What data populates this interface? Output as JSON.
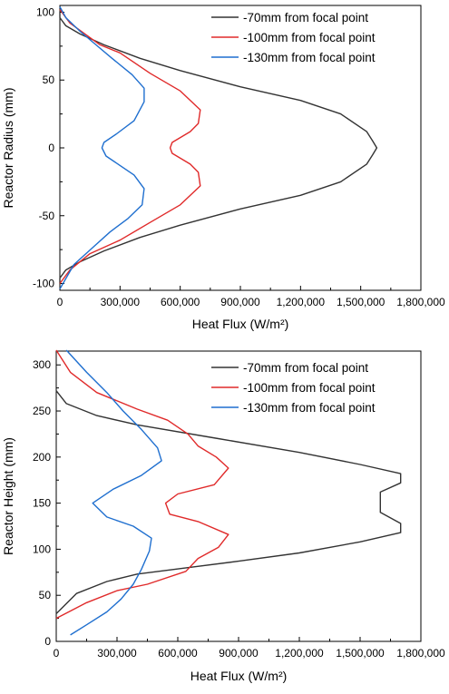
{
  "chart_data": [
    {
      "type": "line",
      "xlabel": "Heat Flux (W/m²)",
      "ylabel": "Reactor Radius (mm)",
      "xlim": [
        0,
        1800000
      ],
      "ylim": [
        -105,
        105
      ],
      "xticks": [
        0,
        300000,
        600000,
        900000,
        1200000,
        1500000,
        1800000
      ],
      "xtick_labels": [
        "0",
        "300,000",
        "600,000",
        "900,000",
        "1,200,000",
        "1,500,000",
        "1,800,000"
      ],
      "yticks": [
        -100,
        -50,
        0,
        50,
        100
      ],
      "ytick_labels": [
        "-100",
        "-50",
        "0",
        "50",
        "100"
      ],
      "grid": false,
      "legend_position": "top-right",
      "series": [
        {
          "name": "-70mm from focal point",
          "color": "#333333",
          "points": [
            [
              0,
              100
            ],
            [
              0,
              96
            ],
            [
              30000,
              90
            ],
            [
              100000,
              84
            ],
            [
              220000,
              76
            ],
            [
              400000,
              66
            ],
            [
              600000,
              57
            ],
            [
              900000,
              45
            ],
            [
              1200000,
              35
            ],
            [
              1400000,
              25
            ],
            [
              1530000,
              12
            ],
            [
              1560000,
              5
            ],
            [
              1580000,
              0
            ],
            [
              1560000,
              -5
            ],
            [
              1530000,
              -12
            ],
            [
              1400000,
              -25
            ],
            [
              1200000,
              -35
            ],
            [
              900000,
              -45
            ],
            [
              600000,
              -57
            ],
            [
              400000,
              -66
            ],
            [
              220000,
              -76
            ],
            [
              100000,
              -84
            ],
            [
              30000,
              -90
            ],
            [
              0,
              -96
            ],
            [
              0,
              -100
            ]
          ]
        },
        {
          "name": "-100mm from focal point",
          "color": "#e02a2a",
          "points": [
            [
              0,
              102
            ],
            [
              50000,
              92
            ],
            [
              200000,
              76
            ],
            [
              300000,
              70
            ],
            [
              450000,
              55
            ],
            [
              600000,
              42
            ],
            [
              700000,
              28
            ],
            [
              690000,
              18
            ],
            [
              650000,
              12
            ],
            [
              560000,
              4
            ],
            [
              550000,
              0
            ],
            [
              560000,
              -4
            ],
            [
              650000,
              -12
            ],
            [
              690000,
              -18
            ],
            [
              700000,
              -28
            ],
            [
              600000,
              -42
            ],
            [
              450000,
              -55
            ],
            [
              300000,
              -68
            ],
            [
              150000,
              -78
            ],
            [
              50000,
              -90
            ],
            [
              0,
              -100
            ]
          ]
        },
        {
          "name": "-130mm from focal point",
          "color": "#1f6fcf",
          "points": [
            [
              0,
              104
            ],
            [
              30000,
              96
            ],
            [
              100000,
              86
            ],
            [
              180000,
              76
            ],
            [
              260000,
              66
            ],
            [
              360000,
              54
            ],
            [
              420000,
              44
            ],
            [
              420000,
              34
            ],
            [
              370000,
              20
            ],
            [
              280000,
              10
            ],
            [
              220000,
              4
            ],
            [
              210000,
              0
            ],
            [
              230000,
              -6
            ],
            [
              300000,
              -13
            ],
            [
              370000,
              -20
            ],
            [
              420000,
              -30
            ],
            [
              410000,
              -42
            ],
            [
              340000,
              -52
            ],
            [
              250000,
              -62
            ],
            [
              160000,
              -74
            ],
            [
              70000,
              -86
            ],
            [
              0,
              -104
            ]
          ]
        }
      ]
    },
    {
      "type": "line",
      "xlabel": "Heat Flux (W/m²)",
      "ylabel": "Reactor Height (mm)",
      "xlim": [
        0,
        1800000
      ],
      "ylim": [
        0,
        315
      ],
      "xticks": [
        0,
        300000,
        600000,
        900000,
        1200000,
        1500000,
        1800000
      ],
      "xtick_labels": [
        "0",
        "300,000",
        "600,000",
        "900,000",
        "1,200,000",
        "1,500,000",
        "1,800,000"
      ],
      "yticks": [
        0,
        50,
        100,
        150,
        200,
        250,
        300
      ],
      "ytick_labels": [
        "0",
        "50",
        "100",
        "150",
        "200",
        "250",
        "300"
      ],
      "grid": false,
      "legend_position": "top-right",
      "series": [
        {
          "name": "-70mm from focal point",
          "color": "#333333",
          "points": [
            [
              0,
              272
            ],
            [
              50000,
              258
            ],
            [
              200000,
              245
            ],
            [
              400000,
              235
            ],
            [
              800000,
              220
            ],
            [
              1200000,
              205
            ],
            [
              1500000,
              192
            ],
            [
              1700000,
              182
            ],
            [
              1700000,
              172
            ],
            [
              1600000,
              162
            ],
            [
              1600000,
              140
            ],
            [
              1700000,
              128
            ],
            [
              1700000,
              118
            ],
            [
              1500000,
              108
            ],
            [
              1200000,
              96
            ],
            [
              900000,
              87
            ],
            [
              650000,
              80
            ],
            [
              400000,
              73
            ],
            [
              250000,
              65
            ],
            [
              100000,
              52
            ],
            [
              0,
              30
            ]
          ]
        },
        {
          "name": "-100mm from focal point",
          "color": "#e02a2a",
          "points": [
            [
              0,
              316
            ],
            [
              70000,
              292
            ],
            [
              200000,
              270
            ],
            [
              400000,
              252
            ],
            [
              550000,
              240
            ],
            [
              650000,
              225
            ],
            [
              700000,
              212
            ],
            [
              790000,
              200
            ],
            [
              850000,
              188
            ],
            [
              780000,
              170
            ],
            [
              600000,
              160
            ],
            [
              540000,
              150
            ],
            [
              560000,
              138
            ],
            [
              700000,
              130
            ],
            [
              850000,
              116
            ],
            [
              800000,
              102
            ],
            [
              700000,
              90
            ],
            [
              640000,
              76
            ],
            [
              450000,
              62
            ],
            [
              300000,
              55
            ],
            [
              150000,
              42
            ],
            [
              0,
              25
            ]
          ]
        },
        {
          "name": "-130mm from focal point",
          "color": "#1f6fcf",
          "points": [
            [
              50000,
              316
            ],
            [
              150000,
              292
            ],
            [
              250000,
              270
            ],
            [
              330000,
              250
            ],
            [
              420000,
              230
            ],
            [
              500000,
              210
            ],
            [
              520000,
              196
            ],
            [
              420000,
              180
            ],
            [
              280000,
              165
            ],
            [
              180000,
              150
            ],
            [
              250000,
              135
            ],
            [
              380000,
              125
            ],
            [
              470000,
              112
            ],
            [
              460000,
              98
            ],
            [
              420000,
              78
            ],
            [
              380000,
              62
            ],
            [
              320000,
              46
            ],
            [
              250000,
              32
            ],
            [
              150000,
              18
            ],
            [
              70000,
              7
            ]
          ]
        }
      ]
    }
  ]
}
